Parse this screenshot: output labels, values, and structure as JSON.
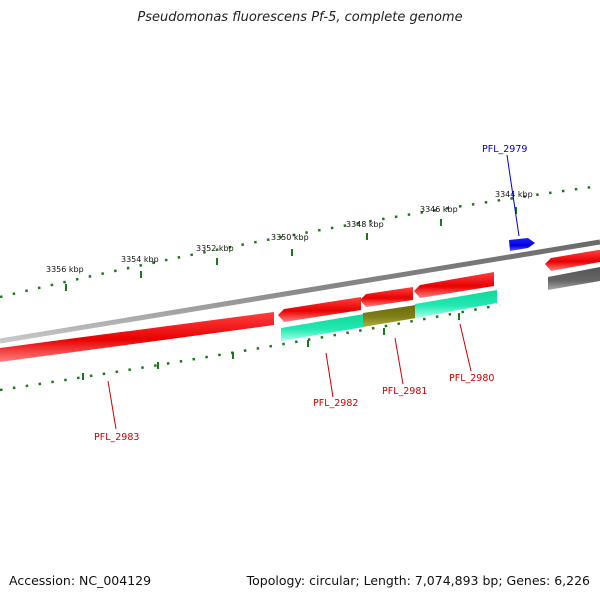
{
  "title": "Pseudomonas fluorescens Pf-5, complete genome",
  "footer": {
    "accession": "Accession: NC_004129",
    "summary": "Topology: circular; Length: 7,074,893 bp; Genes: 6,226"
  },
  "ticks": {
    "labels": [
      "3344 kbp",
      "3346 kbp",
      "3348 kbp",
      "3350 kbp",
      "3352 kbp",
      "3354 kbp",
      "3356 kbp"
    ]
  },
  "genes": [
    {
      "name": "PFL_2979",
      "color": "#0000cc"
    },
    {
      "name": "PFL_2980",
      "color": "#cc0000"
    },
    {
      "name": "PFL_2981",
      "color": "#cc0000"
    },
    {
      "name": "PFL_2982",
      "color": "#cc0000"
    },
    {
      "name": "PFL_2983",
      "color": "#cc0000"
    }
  ],
  "colors": {
    "forward": "#e80000",
    "reverse": "#e80000",
    "feature_cyan": "#22e8b0",
    "feature_olive": "#7a7a10",
    "backbone": "#8a8a8a",
    "ticks": "#1a7a1a",
    "blue_gene": "#1010ee"
  }
}
